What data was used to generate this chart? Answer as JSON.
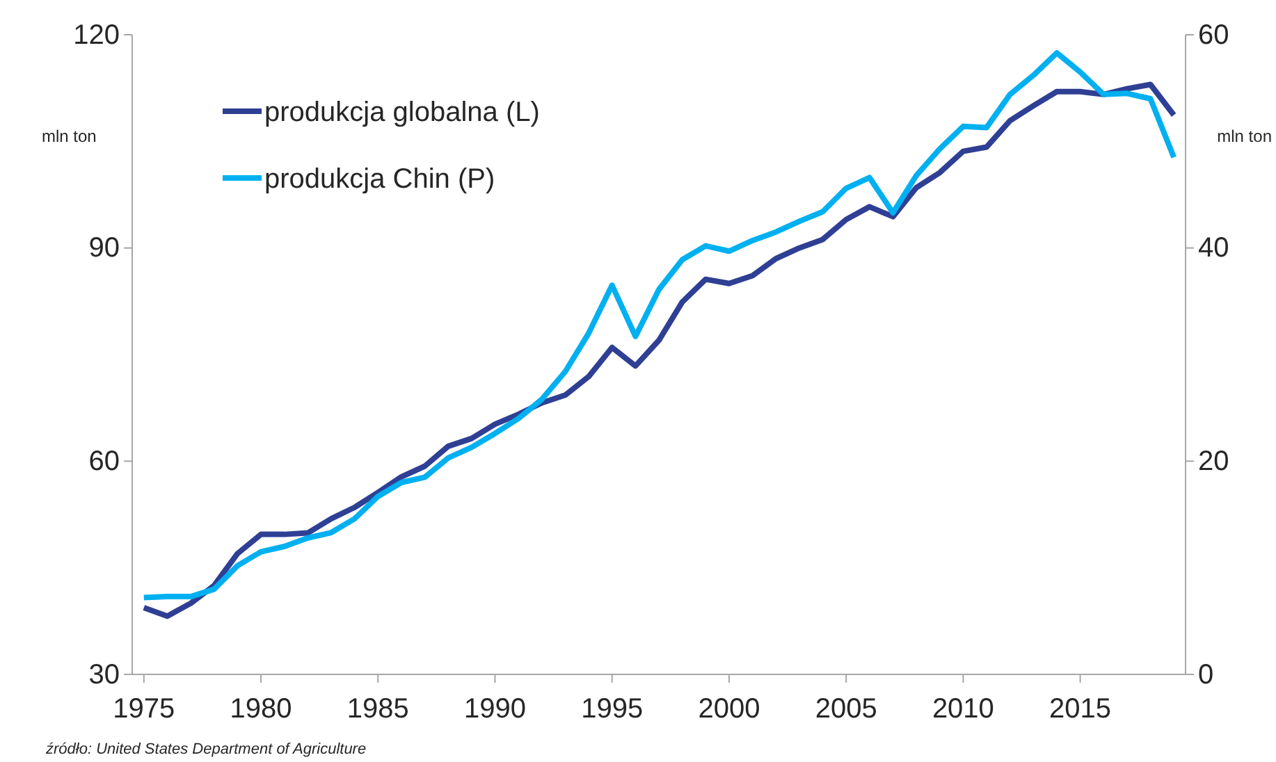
{
  "chart_data": {
    "type": "line",
    "ylabel": "mln ton",
    "y2label": "mln ton",
    "x": [
      1975,
      1976,
      1977,
      1978,
      1979,
      1980,
      1981,
      1982,
      1983,
      1984,
      1985,
      1986,
      1987,
      1988,
      1989,
      1990,
      1991,
      1992,
      1993,
      1994,
      1995,
      1996,
      1997,
      1998,
      1999,
      2000,
      2001,
      2002,
      2003,
      2004,
      2005,
      2006,
      2007,
      2008,
      2009,
      2010,
      2011,
      2012,
      2013,
      2014,
      2015,
      2016,
      2017,
      2018,
      2019
    ],
    "series": [
      {
        "name": "produkcja globalna (L)",
        "color": "#2e3f94",
        "values": [
          39.4,
          38.2,
          40,
          42.5,
          47,
          49.7,
          49.7,
          49.9,
          51.9,
          53.5,
          55.6,
          57.8,
          59.3,
          62.1,
          63.2,
          65.2,
          66.6,
          68.2,
          69.3,
          71.9,
          76,
          73.4,
          77,
          82.4,
          85.6,
          85,
          86.1,
          88.5,
          90,
          91.2,
          94,
          95.8,
          94.4,
          98.5,
          100.6,
          103.6,
          104.2,
          107.9,
          110,
          112,
          112,
          111.6,
          112.4,
          113,
          108.7
        ]
      },
      {
        "name": "produkcja Chin (P)",
        "color": "#00b0f0",
        "axis": "y2",
        "values": [
          7.2,
          7.3,
          7.3,
          8,
          10.2,
          11.5,
          12,
          12.8,
          13.3,
          14.6,
          16.7,
          18,
          18.5,
          20.3,
          21.3,
          22.6,
          24,
          25.8,
          28.4,
          32,
          36.5,
          31.7,
          36.1,
          38.9,
          40.2,
          39.7,
          40.7,
          41.5,
          42.5,
          43.4,
          45.6,
          46.6,
          43.3,
          46.8,
          49.3,
          51.4,
          51.3,
          54.4,
          56.2,
          58.3,
          56.5,
          54.4,
          54.5,
          54,
          48.5
        ]
      }
    ],
    "xlim": [
      1974.5,
      2019.5
    ],
    "xticks": [
      1975,
      1980,
      1985,
      1990,
      1995,
      2000,
      2005,
      2010,
      2015
    ],
    "ylim": [
      30,
      120
    ],
    "yticks": [
      30,
      60,
      90,
      120
    ],
    "y2lim": [
      0,
      60
    ],
    "y2ticks": [
      0,
      20,
      40,
      60
    ],
    "legend": "top left",
    "grid": false,
    "marker": "none",
    "line_style": "solid",
    "annotations": [
      "źródło: United States Department of Agriculture"
    ]
  }
}
